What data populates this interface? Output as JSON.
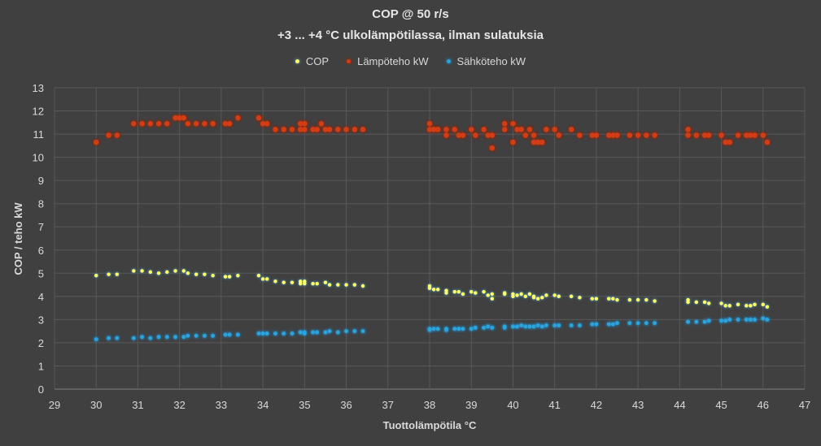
{
  "chart_data": {
    "type": "scatter",
    "title": "COP @ 50 r/s",
    "subtitle": "+3 ... +4 °C ulkolämpötilassa, ilman sulatuksia",
    "xlabel": "Tuottolämpötila °C",
    "ylabel": "COP  /  teho kW",
    "xlim": [
      29,
      47
    ],
    "ylim": [
      0,
      13
    ],
    "xticks": [
      "29",
      "30",
      "31",
      "32",
      "33",
      "34",
      "35",
      "36",
      "37",
      "38",
      "39",
      "40",
      "41",
      "42",
      "43",
      "44",
      "45",
      "46",
      "47"
    ],
    "yticks": [
      "0",
      "1",
      "2",
      "3",
      "4",
      "5",
      "6",
      "7",
      "8",
      "9",
      "10",
      "11",
      "12",
      "13"
    ],
    "grid": true,
    "legend_position": "top",
    "series": [
      {
        "name": "COP",
        "color": "#ffff66",
        "x": [
          30.0,
          30.3,
          30.5,
          30.9,
          31.1,
          31.3,
          31.5,
          31.7,
          31.9,
          32.1,
          32.2,
          32.4,
          32.6,
          32.8,
          33.1,
          33.2,
          33.4,
          33.9,
          34.0,
          34.1,
          34.3,
          34.5,
          34.7,
          34.9,
          34.9,
          35.0,
          35.0,
          35.2,
          35.3,
          35.5,
          35.6,
          35.8,
          36.0,
          36.2,
          36.4,
          38.0,
          38.0,
          38.1,
          38.2,
          38.4,
          38.4,
          38.6,
          38.7,
          38.8,
          39.0,
          39.1,
          39.3,
          39.4,
          39.5,
          39.5,
          39.8,
          39.8,
          40.0,
          40.0,
          40.1,
          40.2,
          40.3,
          40.4,
          40.5,
          40.5,
          40.6,
          40.7,
          40.8,
          41.0,
          41.1,
          41.4,
          41.6,
          41.9,
          42.0,
          42.3,
          42.4,
          42.5,
          42.8,
          43.0,
          43.2,
          43.4,
          44.2,
          44.2,
          44.4,
          44.6,
          44.7,
          45.0,
          45.1,
          45.2,
          45.4,
          45.6,
          45.7,
          45.8,
          46.0,
          46.1
        ],
        "y": [
          4.9,
          4.95,
          4.95,
          5.1,
          5.1,
          5.05,
          5.0,
          5.05,
          5.1,
          5.1,
          5.0,
          4.95,
          4.95,
          4.9,
          4.85,
          4.85,
          4.9,
          4.9,
          4.75,
          4.75,
          4.65,
          4.6,
          4.6,
          4.55,
          4.65,
          4.65,
          4.55,
          4.55,
          4.55,
          4.6,
          4.5,
          4.5,
          4.5,
          4.5,
          4.45,
          4.45,
          4.35,
          4.3,
          4.3,
          4.25,
          4.15,
          4.2,
          4.2,
          4.1,
          4.2,
          4.15,
          4.2,
          4.05,
          4.1,
          3.9,
          4.1,
          4.15,
          4.1,
          4.0,
          4.05,
          4.1,
          4.0,
          4.1,
          4.0,
          3.95,
          3.9,
          3.95,
          4.05,
          4.05,
          4.0,
          4.0,
          3.95,
          3.9,
          3.9,
          3.9,
          3.9,
          3.85,
          3.85,
          3.85,
          3.85,
          3.8,
          3.85,
          3.75,
          3.75,
          3.75,
          3.7,
          3.7,
          3.6,
          3.6,
          3.65,
          3.6,
          3.6,
          3.65,
          3.65,
          3.55
        ]
      },
      {
        "name": "Lämpöteho kW",
        "color": "#d23c14",
        "x": [
          30.0,
          30.3,
          30.5,
          30.9,
          31.1,
          31.3,
          31.5,
          31.7,
          31.9,
          32.0,
          32.1,
          32.2,
          32.4,
          32.6,
          32.8,
          33.1,
          33.2,
          33.4,
          33.9,
          34.0,
          34.1,
          34.3,
          34.5,
          34.7,
          34.9,
          34.9,
          35.0,
          35.0,
          35.2,
          35.3,
          35.4,
          35.5,
          35.6,
          35.8,
          36.0,
          36.2,
          36.4,
          38.0,
          38.0,
          38.1,
          38.2,
          38.4,
          38.4,
          38.6,
          38.7,
          38.8,
          39.0,
          39.1,
          39.3,
          39.4,
          39.5,
          39.5,
          39.8,
          39.8,
          40.0,
          40.0,
          40.1,
          40.2,
          40.3,
          40.4,
          40.5,
          40.5,
          40.6,
          40.7,
          40.8,
          41.0,
          41.1,
          41.4,
          41.6,
          41.9,
          42.0,
          42.3,
          42.4,
          42.5,
          42.8,
          43.0,
          43.2,
          43.4,
          44.2,
          44.2,
          44.4,
          44.6,
          44.7,
          45.0,
          45.1,
          45.2,
          45.4,
          45.6,
          45.7,
          45.8,
          46.0,
          46.1
        ],
        "y": [
          10.65,
          10.95,
          10.95,
          11.45,
          11.45,
          11.45,
          11.45,
          11.45,
          11.7,
          11.7,
          11.7,
          11.45,
          11.45,
          11.45,
          11.45,
          11.45,
          11.45,
          11.7,
          11.7,
          11.45,
          11.45,
          11.2,
          11.2,
          11.2,
          11.2,
          11.45,
          11.45,
          11.2,
          11.2,
          11.2,
          11.45,
          11.2,
          11.2,
          11.2,
          11.2,
          11.2,
          11.2,
          11.45,
          11.2,
          11.2,
          11.2,
          11.2,
          10.95,
          11.2,
          10.95,
          10.95,
          11.2,
          10.95,
          11.2,
          10.95,
          10.4,
          10.95,
          11.45,
          11.2,
          11.45,
          10.65,
          11.2,
          11.2,
          10.95,
          11.2,
          10.65,
          10.95,
          10.65,
          10.65,
          11.2,
          11.2,
          10.95,
          11.2,
          10.95,
          10.95,
          10.95,
          10.95,
          10.95,
          10.95,
          10.95,
          10.95,
          10.95,
          10.95,
          11.2,
          10.95,
          10.95,
          10.95,
          10.95,
          10.95,
          10.65,
          10.65,
          10.95,
          10.95,
          10.95,
          10.95,
          10.95,
          10.65
        ]
      },
      {
        "name": "Sähköteho kW",
        "color": "#2aa4dc",
        "x": [
          30.0,
          30.3,
          30.5,
          30.9,
          31.1,
          31.3,
          31.5,
          31.7,
          31.9,
          32.1,
          32.2,
          32.4,
          32.6,
          32.8,
          33.1,
          33.2,
          33.4,
          33.9,
          34.0,
          34.1,
          34.3,
          34.5,
          34.7,
          34.9,
          34.9,
          35.0,
          35.0,
          35.2,
          35.3,
          35.5,
          35.6,
          35.8,
          36.0,
          36.2,
          36.4,
          38.0,
          38.0,
          38.1,
          38.2,
          38.4,
          38.4,
          38.6,
          38.7,
          38.8,
          39.0,
          39.1,
          39.3,
          39.4,
          39.5,
          39.5,
          39.8,
          39.8,
          40.0,
          40.0,
          40.1,
          40.2,
          40.3,
          40.4,
          40.5,
          40.5,
          40.6,
          40.7,
          40.8,
          41.0,
          41.1,
          41.4,
          41.6,
          41.9,
          42.0,
          42.3,
          42.4,
          42.5,
          42.8,
          43.0,
          43.2,
          43.4,
          44.2,
          44.2,
          44.4,
          44.6,
          44.7,
          45.0,
          45.1,
          45.2,
          45.4,
          45.6,
          45.7,
          45.8,
          46.0,
          46.1
        ],
        "y": [
          2.15,
          2.2,
          2.2,
          2.2,
          2.25,
          2.2,
          2.25,
          2.25,
          2.25,
          2.25,
          2.3,
          2.3,
          2.3,
          2.3,
          2.35,
          2.35,
          2.35,
          2.4,
          2.4,
          2.4,
          2.4,
          2.4,
          2.4,
          2.45,
          2.45,
          2.45,
          2.4,
          2.45,
          2.45,
          2.45,
          2.5,
          2.45,
          2.5,
          2.5,
          2.5,
          2.55,
          2.6,
          2.6,
          2.6,
          2.6,
          2.55,
          2.6,
          2.6,
          2.6,
          2.6,
          2.65,
          2.65,
          2.7,
          2.65,
          2.65,
          2.7,
          2.65,
          2.7,
          2.7,
          2.7,
          2.75,
          2.7,
          2.7,
          2.7,
          2.7,
          2.75,
          2.7,
          2.75,
          2.75,
          2.75,
          2.75,
          2.75,
          2.8,
          2.8,
          2.8,
          2.8,
          2.85,
          2.85,
          2.85,
          2.85,
          2.85,
          2.9,
          2.9,
          2.9,
          2.9,
          2.95,
          2.95,
          2.95,
          3.0,
          3.0,
          3.0,
          3.0,
          3.0,
          3.05,
          3.0
        ]
      }
    ]
  }
}
